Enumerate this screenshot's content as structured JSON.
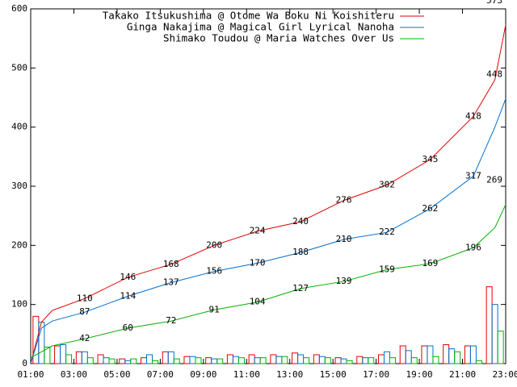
{
  "chart_data": {
    "type": "line",
    "x": [
      "01:00",
      "01:30",
      "02:00",
      "03:30",
      "05:30",
      "07:30",
      "09:30",
      "11:30",
      "13:30",
      "15:30",
      "17:30",
      "19:30",
      "21:30",
      "22:30",
      "23:00"
    ],
    "xlim": [
      "01:00",
      "23:00"
    ],
    "xticks": [
      "01:00",
      "03:00",
      "05:00",
      "07:00",
      "09:00",
      "11:00",
      "13:00",
      "15:00",
      "17:00",
      "19:00",
      "21:00",
      "23:00"
    ],
    "ylim": [
      0,
      600
    ],
    "yticks": [
      0,
      100,
      200,
      300,
      400,
      500,
      600
    ],
    "legend": "top-left",
    "bar_x": [
      "01:00",
      "02:00",
      "03:00",
      "04:00",
      "05:00",
      "06:00",
      "07:00",
      "08:00",
      "09:00",
      "10:00",
      "11:00",
      "12:00",
      "13:00",
      "14:00",
      "15:00",
      "16:00",
      "17:00",
      "18:00",
      "19:00",
      "20:00",
      "21:00",
      "22:00"
    ],
    "series": [
      {
        "name": "Takako Itsukushima @ Otome Wa Boku Ni Koishiteru",
        "color": "#e00000",
        "values": [
          0,
          70,
          90,
          110,
          146,
          168,
          200,
          224,
          240,
          276,
          302,
          345,
          418,
          480,
          573
        ],
        "value_labels": [
          null,
          null,
          null,
          "110",
          "146",
          "168",
          "200",
          "224",
          "240",
          "276",
          "302",
          "345",
          "418",
          null,
          "573"
        ],
        "bars": [
          80,
          30,
          20,
          15,
          8,
          10,
          20,
          12,
          10,
          15,
          15,
          15,
          18,
          15,
          10,
          12,
          15,
          30,
          30,
          32,
          30,
          130
        ]
      },
      {
        "name": "Ginga Nakajima @ Magical Girl Lyrical Nanoha",
        "color": "#0070d0",
        "values": [
          0,
          60,
          72,
          87,
          114,
          137,
          156,
          170,
          188,
          210,
          222,
          262,
          317,
          400,
          448
        ],
        "value_labels": [
          null,
          null,
          null,
          "87",
          "114",
          "137",
          "156",
          "170",
          "188",
          "210",
          "222",
          "262",
          "317",
          null,
          "448"
        ],
        "bars": [
          70,
          32,
          20,
          10,
          5,
          15,
          20,
          12,
          8,
          12,
          10,
          12,
          15,
          12,
          8,
          10,
          20,
          22,
          30,
          25,
          30,
          100
        ]
      },
      {
        "name": "Shimako Toudou @ Maria Watches Over Us",
        "color": "#00b000",
        "values": [
          10,
          20,
          30,
          42,
          60,
          72,
          91,
          104,
          127,
          139,
          159,
          169,
          196,
          230,
          269
        ],
        "value_labels": [
          null,
          null,
          null,
          "42",
          "60",
          "72",
          "91",
          "104",
          "127",
          "139",
          "159",
          "169",
          "196",
          null,
          "269"
        ],
        "bars": [
          28,
          15,
          10,
          8,
          8,
          5,
          8,
          10,
          8,
          10,
          10,
          12,
          10,
          10,
          5,
          10,
          10,
          10,
          12,
          20,
          5,
          55
        ]
      }
    ]
  }
}
